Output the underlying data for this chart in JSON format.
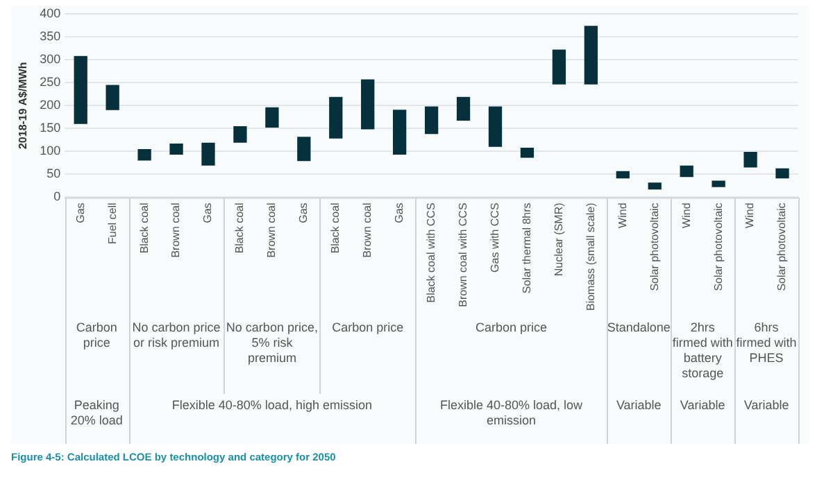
{
  "chart_data": {
    "type": "bar",
    "ylabel": "2018-19 A$/MWh",
    "categories": [
      "Gas",
      "Fuel cell",
      "Black coal",
      "Brown coal",
      "Gas",
      "Black coal",
      "Brown coal",
      "Gas",
      "Black coal",
      "Brown coal",
      "Gas",
      "Black coal with CCS",
      "Brown coal with CCS",
      "Gas with CCS",
      "Solar thermal 8hrs",
      "Nuclear (SMR)",
      "Biomass (small scale)",
      "Wind",
      "Solar photovoltaic",
      "Wind",
      "Solar photovoltaic",
      "Wind",
      "Solar photovoltaic"
    ],
    "series": [
      {
        "color": "#06303b",
        "values": [
          148,
          55,
          25,
          24,
          50,
          36,
          44,
          53,
          91,
          109,
          98,
          60,
          52,
          88,
          22,
          76,
          128,
          16,
          15,
          25,
          14,
          34,
          22
        ],
        "base": [
          160,
          190,
          80,
          93,
          69,
          119,
          152,
          79,
          128,
          148,
          93,
          138,
          167,
          110,
          86,
          246,
          246,
          41,
          17,
          44,
          22,
          65,
          41
        ]
      }
    ],
    "ylim": [
      0,
      400
    ],
    "yticks": [
      0,
      50,
      100,
      150,
      200,
      250,
      300,
      350,
      400
    ],
    "grid": "y",
    "annotations": [
      "Carbon price",
      "No carbon price or risk premium",
      "No carbon price, 5% risk premium",
      "Carbon price",
      "Carbon price",
      "Standalone",
      "2hrs firmed with battery storage",
      "6hrs firmed with PHES",
      "Peaking 20% load",
      "Flexible 40-80% load, high emission",
      "Flexible 40-80% load, low emission",
      "Variable",
      "Variable",
      "Variable",
      "Figure 4-5: Calculated LCOE by technology and category for 2050"
    ]
  }
}
